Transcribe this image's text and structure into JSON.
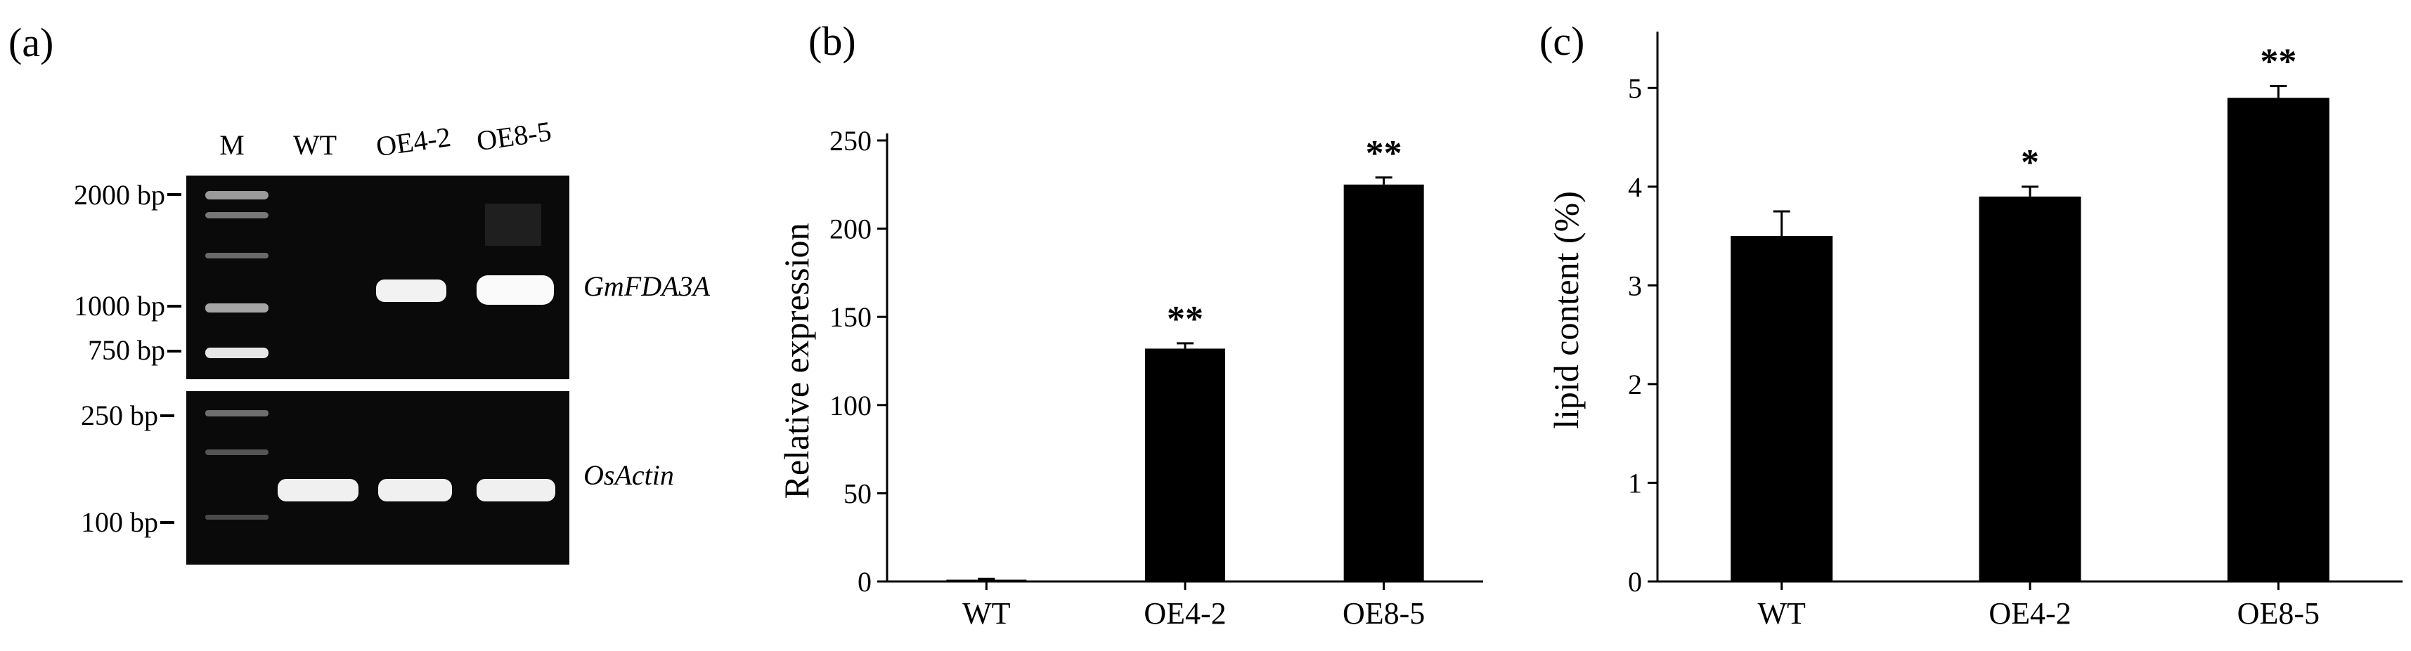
{
  "panels": {
    "a": "(a)",
    "b": "(b)",
    "c": "(c)"
  },
  "gel": {
    "lanes": [
      "M",
      "WT",
      "OE4-2",
      "OE8-5"
    ],
    "ladder_top": [
      "2000 bp",
      "1000 bp",
      "750 bp"
    ],
    "ladder_bottom": [
      "250 bp",
      "100 bp"
    ],
    "gene_top": "GmFDA3A",
    "gene_bottom": "OsActin",
    "bands_top": [
      0,
      1,
      1
    ],
    "bands_bottom": [
      1,
      1,
      1
    ]
  },
  "chart_data": [
    {
      "type": "bar",
      "panel": "(b)",
      "categories": [
        "WT",
        "OE4-2",
        "OE8-5"
      ],
      "values": [
        1,
        132,
        225
      ],
      "errors": [
        0.5,
        3,
        4
      ],
      "significance": [
        "",
        "**",
        "**"
      ],
      "ylabel": "Relative expression",
      "xlabel": "",
      "ylim": [
        0,
        250
      ],
      "yticks": [
        0,
        50,
        100,
        150,
        200,
        250
      ]
    },
    {
      "type": "bar",
      "panel": "(c)",
      "categories": [
        "WT",
        "OE4-2",
        "OE8-5"
      ],
      "values": [
        3.5,
        3.9,
        4.9
      ],
      "errors": [
        0.25,
        0.1,
        0.12
      ],
      "significance": [
        "",
        "*",
        "**"
      ],
      "ylabel": "lipid content (%)",
      "xlabel": "",
      "ylim": [
        0,
        5.5
      ],
      "yticks": [
        0,
        1,
        2,
        3,
        4,
        5
      ]
    }
  ]
}
